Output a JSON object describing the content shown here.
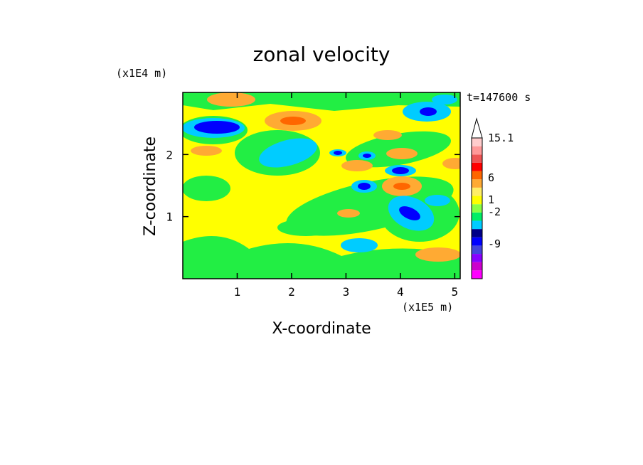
{
  "chart_data": {
    "type": "heatmap",
    "title": "zonal velocity",
    "xlabel": "X-coordinate",
    "ylabel": "Z-coordinate",
    "x_scale_label": "(x1E5 m)",
    "y_scale_label": "(x1E4 m)",
    "time_label": "t=147600 s",
    "xlim": [
      0,
      5.1
    ],
    "ylim": [
      0,
      3.0
    ],
    "x_ticks": [
      "1",
      "2",
      "3",
      "4",
      "5"
    ],
    "y_ticks": [
      "1",
      "2"
    ],
    "colorbar": {
      "labels": [
        "15.1",
        "6",
        "1",
        "-2",
        "-9"
      ],
      "colors": [
        "#f0f",
        "#c0c",
        "#80f",
        "#44d",
        "#00f",
        "#008",
        "#0cf",
        "#0e6",
        "#8f4",
        "#ff0",
        "#fe6",
        "#fa3",
        "#f60",
        "#f00",
        "#e55",
        "#f99",
        "#fcc"
      ]
    },
    "background_color": "#ffff00",
    "contour_features": [
      {
        "kind": "negative",
        "x": 0.5,
        "z": 2.45,
        "value": -8
      },
      {
        "kind": "negative",
        "x": 4.5,
        "z": 2.65,
        "value": -6
      },
      {
        "kind": "negative",
        "x": 4.3,
        "z": 1.05,
        "value": -6
      },
      {
        "kind": "negative",
        "x": 3.95,
        "z": 1.75,
        "value": -5
      },
      {
        "kind": "negative",
        "x": 3.35,
        "z": 1.45,
        "value": -5
      },
      {
        "kind": "negative",
        "x": 3.4,
        "z": 1.95,
        "value": -4
      },
      {
        "kind": "negative",
        "x": 2.85,
        "z": 2.0,
        "value": -4
      },
      {
        "kind": "positive",
        "x": 2.1,
        "z": 2.5,
        "value": 4
      },
      {
        "kind": "positive",
        "x": 0.9,
        "z": 2.8,
        "value": 3
      },
      {
        "kind": "positive",
        "x": 4.0,
        "z": 1.45,
        "value": 4
      },
      {
        "kind": "positive",
        "x": 4.1,
        "z": 2.05,
        "value": 3
      },
      {
        "kind": "positive",
        "x": 3.6,
        "z": 2.25,
        "value": 3
      },
      {
        "kind": "positive",
        "x": 3.2,
        "z": 1.75,
        "value": 3
      },
      {
        "kind": "positive",
        "x": 4.9,
        "z": 0.45,
        "value": 3
      }
    ]
  }
}
